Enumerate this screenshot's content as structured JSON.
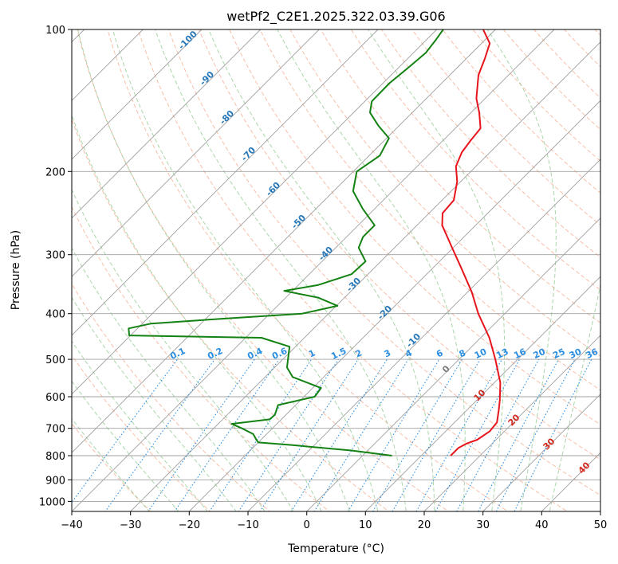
{
  "chart_data": {
    "type": "line",
    "title": "wetPf2_C2E1.2025.322.03.39.G06",
    "xlabel": "Temperature (°C)",
    "ylabel": "Pressure (hPa)",
    "xlim": [
      -40,
      50
    ],
    "ylim": [
      1050,
      100
    ],
    "y_scale": "log",
    "grid": true,
    "x_ticks": [
      -40,
      -30,
      -20,
      -10,
      0,
      10,
      20,
      30,
      40,
      50
    ],
    "y_ticks": [
      100,
      200,
      300,
      400,
      500,
      600,
      700,
      800,
      900,
      1000
    ],
    "skew_note": "skewed temperature axis",
    "colors": {
      "temperature": "#e8141c",
      "dewpoint": "#138213",
      "isotherm_label": "#2878b8",
      "mixing_ratio": "#2b8ee0",
      "dry_adiabat": "#f4a98b",
      "moist_adiabat": "#86c486",
      "isobar_isotherm": "#a0a0a0"
    },
    "series": [
      {
        "role": "temperature",
        "points": [
          {
            "p": 800,
            "t": 15.0
          },
          {
            "p": 770,
            "t": 15.0
          },
          {
            "p": 755,
            "t": 15.6
          },
          {
            "p": 740,
            "t": 16.8
          },
          {
            "p": 710,
            "t": 17.5
          },
          {
            "p": 680,
            "t": 17.2
          },
          {
            "p": 640,
            "t": 15.4
          },
          {
            "p": 610,
            "t": 13.9
          },
          {
            "p": 560,
            "t": 11.0
          },
          {
            "p": 500,
            "t": 6.2
          },
          {
            "p": 450,
            "t": 1.5
          },
          {
            "p": 400,
            "t": -4.5
          },
          {
            "p": 360,
            "t": -9.3
          },
          {
            "p": 320,
            "t": -15.2
          },
          {
            "p": 290,
            "t": -20.2
          },
          {
            "p": 260,
            "t": -25.7
          },
          {
            "p": 245,
            "t": -27.7
          },
          {
            "p": 230,
            "t": -28.0
          },
          {
            "p": 210,
            "t": -30.6
          },
          {
            "p": 195,
            "t": -33.4
          },
          {
            "p": 182,
            "t": -34.8
          },
          {
            "p": 172,
            "t": -35.3
          },
          {
            "p": 162,
            "t": -35.7
          },
          {
            "p": 150,
            "t": -38.6
          },
          {
            "p": 140,
            "t": -41.5
          },
          {
            "p": 125,
            "t": -45.1
          },
          {
            "p": 115,
            "t": -46.9
          },
          {
            "p": 107,
            "t": -48.6
          },
          {
            "p": 100,
            "t": -52.1
          }
        ]
      },
      {
        "role": "dewpoint",
        "points": [
          {
            "p": 800,
            "t": 5.0
          },
          {
            "p": 780,
            "t": -2.8
          },
          {
            "p": 760,
            "t": -13.7
          },
          {
            "p": 750,
            "t": -20.0
          },
          {
            "p": 740,
            "t": -20.8
          },
          {
            "p": 720,
            "t": -22.3
          },
          {
            "p": 700,
            "t": -25.2
          },
          {
            "p": 685,
            "t": -27.7
          },
          {
            "p": 670,
            "t": -22.0
          },
          {
            "p": 655,
            "t": -21.9
          },
          {
            "p": 625,
            "t": -23.0
          },
          {
            "p": 600,
            "t": -18.2
          },
          {
            "p": 575,
            "t": -18.6
          },
          {
            "p": 545,
            "t": -25.3
          },
          {
            "p": 520,
            "t": -27.9
          },
          {
            "p": 470,
            "t": -31.0
          },
          {
            "p": 450,
            "t": -37.3
          },
          {
            "p": 445,
            "t": -60.2
          },
          {
            "p": 430,
            "t": -61.5
          },
          {
            "p": 420,
            "t": -58.5
          },
          {
            "p": 410,
            "t": -47.0
          },
          {
            "p": 400,
            "t": -34.5
          },
          {
            "p": 385,
            "t": -29.8
          },
          {
            "p": 370,
            "t": -34.5
          },
          {
            "p": 358,
            "t": -41.4
          },
          {
            "p": 348,
            "t": -36.7
          },
          {
            "p": 330,
            "t": -32.8
          },
          {
            "p": 310,
            "t": -32.6
          },
          {
            "p": 290,
            "t": -36.1
          },
          {
            "p": 275,
            "t": -37.2
          },
          {
            "p": 260,
            "t": -37.2
          },
          {
            "p": 240,
            "t": -42.0
          },
          {
            "p": 220,
            "t": -46.7
          },
          {
            "p": 200,
            "t": -49.4
          },
          {
            "p": 185,
            "t": -48.2
          },
          {
            "p": 170,
            "t": -49.6
          },
          {
            "p": 160,
            "t": -53.5
          },
          {
            "p": 150,
            "t": -57.2
          },
          {
            "p": 142,
            "t": -58.8
          },
          {
            "p": 130,
            "t": -58.9
          },
          {
            "p": 120,
            "t": -58.3
          },
          {
            "p": 112,
            "t": -57.9
          },
          {
            "p": 105,
            "t": -58.4
          },
          {
            "p": 100,
            "t": -58.9
          }
        ]
      }
    ],
    "isotherm_labels": [
      "-100",
      "-90",
      "-80",
      "-70",
      "-60",
      "-50",
      "-40",
      "-30",
      "-20",
      "-10"
    ],
    "mixing_ratio_labels": [
      "0.1",
      "0.2",
      "0.4",
      "0.6",
      "1",
      "1.5",
      "2",
      "3",
      "4",
      "6",
      "8",
      "10",
      "13",
      "16",
      "20",
      "25",
      "30",
      "36"
    ],
    "zero_line_label": "0",
    "warm_isotherm_labels": [
      "10",
      "20",
      "30",
      "40"
    ]
  }
}
